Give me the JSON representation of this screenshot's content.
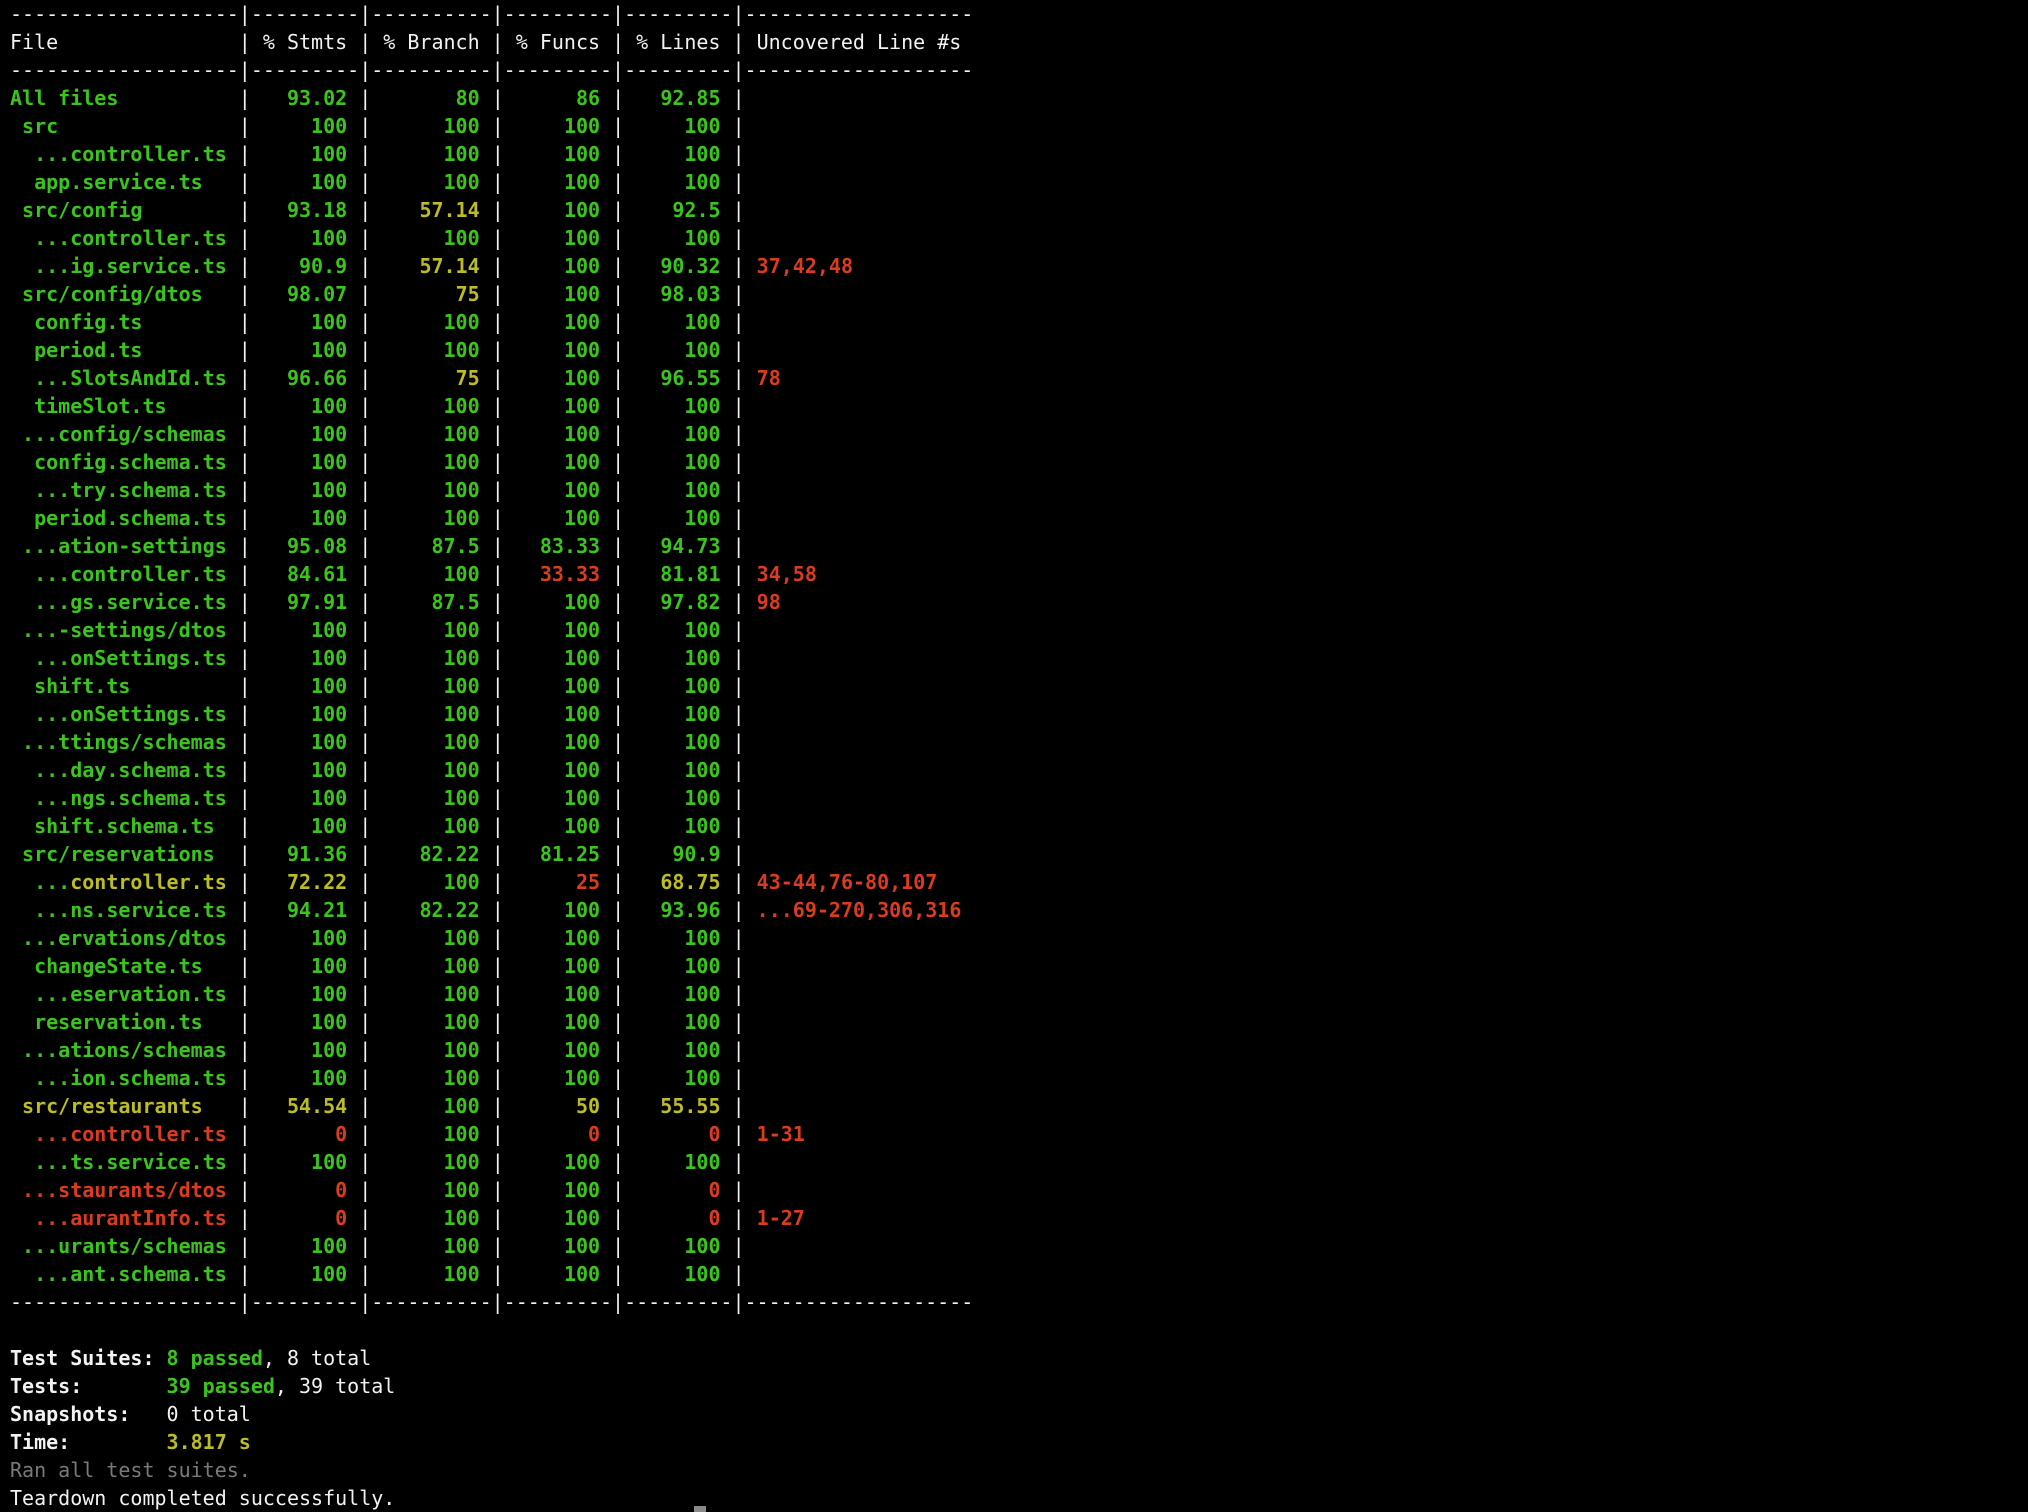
{
  "colors": {
    "g": "#3cc41e",
    "y": "#bcbc26",
    "r": "#d93c1e",
    "w": "#f2f2f2",
    "gray": "#7a7a7a"
  },
  "table": {
    "headers": [
      "File",
      "% Stmts",
      "% Branch",
      "% Funcs",
      "% Lines",
      "Uncovered Line #s"
    ],
    "rows": [
      {
        "file": "All files",
        "stmts": "93.02",
        "branch": "80",
        "funcs": "86",
        "lines": "92.85",
        "uncovered": "",
        "c": "ggggg"
      },
      {
        "file": " src",
        "stmts": "100",
        "branch": "100",
        "funcs": "100",
        "lines": "100",
        "uncovered": "",
        "c": "ggggg"
      },
      {
        "file": "  ...controller.ts",
        "stmts": "100",
        "branch": "100",
        "funcs": "100",
        "lines": "100",
        "uncovered": "",
        "c": "ggggg"
      },
      {
        "file": "  app.service.ts",
        "stmts": "100",
        "branch": "100",
        "funcs": "100",
        "lines": "100",
        "uncovered": "",
        "c": "ggggg"
      },
      {
        "file": " src/config",
        "stmts": "93.18",
        "branch": "57.14",
        "funcs": "100",
        "lines": "92.5",
        "uncovered": "",
        "c": "ggygg"
      },
      {
        "file": "  ...controller.ts",
        "stmts": "100",
        "branch": "100",
        "funcs": "100",
        "lines": "100",
        "uncovered": "",
        "c": "ggggg"
      },
      {
        "file": "  ...ig.service.ts",
        "stmts": "90.9",
        "branch": "57.14",
        "funcs": "100",
        "lines": "90.32",
        "uncovered": "37,42,48",
        "c": "ggygg"
      },
      {
        "file": " src/config/dtos",
        "stmts": "98.07",
        "branch": "75",
        "funcs": "100",
        "lines": "98.03",
        "uncovered": "",
        "c": "ggygg"
      },
      {
        "file": "  config.ts",
        "stmts": "100",
        "branch": "100",
        "funcs": "100",
        "lines": "100",
        "uncovered": "",
        "c": "ggggg"
      },
      {
        "file": "  period.ts",
        "stmts": "100",
        "branch": "100",
        "funcs": "100",
        "lines": "100",
        "uncovered": "",
        "c": "ggggg"
      },
      {
        "file": "  ...SlotsAndId.ts",
        "stmts": "96.66",
        "branch": "75",
        "funcs": "100",
        "lines": "96.55",
        "uncovered": "78",
        "c": "ggygg"
      },
      {
        "file": "  timeSlot.ts",
        "stmts": "100",
        "branch": "100",
        "funcs": "100",
        "lines": "100",
        "uncovered": "",
        "c": "ggggg"
      },
      {
        "file": " ...config/schemas",
        "stmts": "100",
        "branch": "100",
        "funcs": "100",
        "lines": "100",
        "uncovered": "",
        "c": "ggggg"
      },
      {
        "file": "  config.schema.ts",
        "stmts": "100",
        "branch": "100",
        "funcs": "100",
        "lines": "100",
        "uncovered": "",
        "c": "ggggg"
      },
      {
        "file": "  ...try.schema.ts",
        "stmts": "100",
        "branch": "100",
        "funcs": "100",
        "lines": "100",
        "uncovered": "",
        "c": "ggggg"
      },
      {
        "file": "  period.schema.ts",
        "stmts": "100",
        "branch": "100",
        "funcs": "100",
        "lines": "100",
        "uncovered": "",
        "c": "ggggg"
      },
      {
        "file": " ...ation-settings",
        "stmts": "95.08",
        "branch": "87.5",
        "funcs": "83.33",
        "lines": "94.73",
        "uncovered": "",
        "c": "ggggg"
      },
      {
        "file": "  ...controller.ts",
        "stmts": "84.61",
        "branch": "100",
        "funcs": "33.33",
        "lines": "81.81",
        "uncovered": "34,58",
        "c": "gggrg"
      },
      {
        "file": "  ...gs.service.ts",
        "stmts": "97.91",
        "branch": "87.5",
        "funcs": "100",
        "lines": "97.82",
        "uncovered": "98",
        "c": "ggggg"
      },
      {
        "file": " ...-settings/dtos",
        "stmts": "100",
        "branch": "100",
        "funcs": "100",
        "lines": "100",
        "uncovered": "",
        "c": "ggggg"
      },
      {
        "file": "  ...onSettings.ts",
        "stmts": "100",
        "branch": "100",
        "funcs": "100",
        "lines": "100",
        "uncovered": "",
        "c": "ggggg"
      },
      {
        "file": "  shift.ts",
        "stmts": "100",
        "branch": "100",
        "funcs": "100",
        "lines": "100",
        "uncovered": "",
        "c": "ggggg"
      },
      {
        "file": "  ...onSettings.ts",
        "stmts": "100",
        "branch": "100",
        "funcs": "100",
        "lines": "100",
        "uncovered": "",
        "c": "ggggg"
      },
      {
        "file": " ...ttings/schemas",
        "stmts": "100",
        "branch": "100",
        "funcs": "100",
        "lines": "100",
        "uncovered": "",
        "c": "ggggg"
      },
      {
        "file": "  ...day.schema.ts",
        "stmts": "100",
        "branch": "100",
        "funcs": "100",
        "lines": "100",
        "uncovered": "",
        "c": "ggggg"
      },
      {
        "file": "  ...ngs.schema.ts",
        "stmts": "100",
        "branch": "100",
        "funcs": "100",
        "lines": "100",
        "uncovered": "",
        "c": "ggggg"
      },
      {
        "file": "  shift.schema.ts",
        "stmts": "100",
        "branch": "100",
        "funcs": "100",
        "lines": "100",
        "uncovered": "",
        "c": "ggggg"
      },
      {
        "file": " src/reservations",
        "stmts": "91.36",
        "branch": "82.22",
        "funcs": "81.25",
        "lines": "90.9",
        "uncovered": "",
        "c": "ggggg"
      },
      {
        "file": "  ...controller.ts",
        "stmts": "72.22",
        "branch": "100",
        "funcs": "25",
        "lines": "68.75",
        "uncovered": "43-44,76-80,107",
        "c": "yygry",
        "prefix": "g"
      },
      {
        "file": "  ...ns.service.ts",
        "stmts": "94.21",
        "branch": "82.22",
        "funcs": "100",
        "lines": "93.96",
        "uncovered": "...69-270,306,316",
        "c": "ggggg"
      },
      {
        "file": " ...ervations/dtos",
        "stmts": "100",
        "branch": "100",
        "funcs": "100",
        "lines": "100",
        "uncovered": "",
        "c": "ggggg"
      },
      {
        "file": "  changeState.ts",
        "stmts": "100",
        "branch": "100",
        "funcs": "100",
        "lines": "100",
        "uncovered": "",
        "c": "ggggg"
      },
      {
        "file": "  ...eservation.ts",
        "stmts": "100",
        "branch": "100",
        "funcs": "100",
        "lines": "100",
        "uncovered": "",
        "c": "ggggg"
      },
      {
        "file": "  reservation.ts",
        "stmts": "100",
        "branch": "100",
        "funcs": "100",
        "lines": "100",
        "uncovered": "",
        "c": "ggggg"
      },
      {
        "file": " ...ations/schemas",
        "stmts": "100",
        "branch": "100",
        "funcs": "100",
        "lines": "100",
        "uncovered": "",
        "c": "ggggg"
      },
      {
        "file": "  ...ion.schema.ts",
        "stmts": "100",
        "branch": "100",
        "funcs": "100",
        "lines": "100",
        "uncovered": "",
        "c": "ggggg"
      },
      {
        "file": " src/restaurants",
        "stmts": "54.54",
        "branch": "100",
        "funcs": "50",
        "lines": "55.55",
        "uncovered": "",
        "c": "yygyy"
      },
      {
        "file": "  ...controller.ts",
        "stmts": "0",
        "branch": "100",
        "funcs": "0",
        "lines": "0",
        "uncovered": "1-31",
        "c": "rrgrr"
      },
      {
        "file": "  ...ts.service.ts",
        "stmts": "100",
        "branch": "100",
        "funcs": "100",
        "lines": "100",
        "uncovered": "",
        "c": "ggggg"
      },
      {
        "file": " ...staurants/dtos",
        "stmts": "0",
        "branch": "100",
        "funcs": "100",
        "lines": "0",
        "uncovered": "",
        "c": "rrggr"
      },
      {
        "file": "  ...aurantInfo.ts",
        "stmts": "0",
        "branch": "100",
        "funcs": "100",
        "lines": "0",
        "uncovered": "1-27",
        "c": "rrggr"
      },
      {
        "file": " ...urants/schemas",
        "stmts": "100",
        "branch": "100",
        "funcs": "100",
        "lines": "100",
        "uncovered": "",
        "c": "ggggg"
      },
      {
        "file": "  ...ant.schema.ts",
        "stmts": "100",
        "branch": "100",
        "funcs": "100",
        "lines": "100",
        "uncovered": "",
        "c": "ggggg"
      }
    ]
  },
  "summary": {
    "suites": {
      "label": "Test Suites:",
      "passed": "8 passed",
      "rest": ", 8 total"
    },
    "tests": {
      "label": "Tests:",
      "passed": "39 passed",
      "rest": ", 39 total"
    },
    "snapshots": {
      "label": "Snapshots:",
      "rest": "0 total"
    },
    "time": {
      "label": "Time:",
      "value": "3.817 s"
    },
    "ran": "Ran all test suites.",
    "teardown": "Teardown completed successfully."
  }
}
